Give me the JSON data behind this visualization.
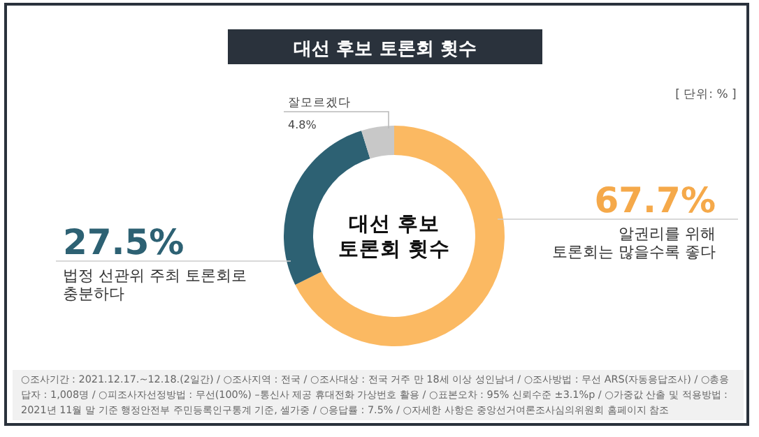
{
  "chart_data": {
    "type": "donut",
    "title": "대선 후보 토론회 횟수",
    "categories": [
      "알권리를 위해\n토론회는 많을수록 좋다",
      "법정 선관위 주최 토론회로\n충분하다",
      "잘모르겠다"
    ],
    "values": [
      67.7,
      27.5,
      4.8
    ],
    "colors": [
      "#fbb962",
      "#2d6173",
      "#c8c8c8"
    ],
    "value_labels": [
      "67.7%",
      "27.5%",
      "4.8%"
    ],
    "annotations": [
      "대선 후보\n토론회 횟수",
      "[ 단위: % ]",
      "○조사기간 : 2021.12.17.~12.18.(2일간) / ○조사지역 : 전국 / ○조사대상 : 전국 거주 만 18세 이상 성인남녀 / ○조사방법 : 무선 ARS(자동응답조사) / ○총응답자 : 1,008명 / ○피조사자선정방법 : 무선(100%) –통신사 제공 휴대전화 가상번호 활용 / ○표본오차 : 95% 신뢰수준 ±3.1%p / ○가중값 산출 및 적용방법 : 2021년 11월 말 기준 행정안전부 주민등록인구통계 기준, 셀가중 / ○응답률 : 7.5% / ○자세한 사항은 중앙선거여론조사심의위원회 홈페이지 참조"
    ]
  }
}
